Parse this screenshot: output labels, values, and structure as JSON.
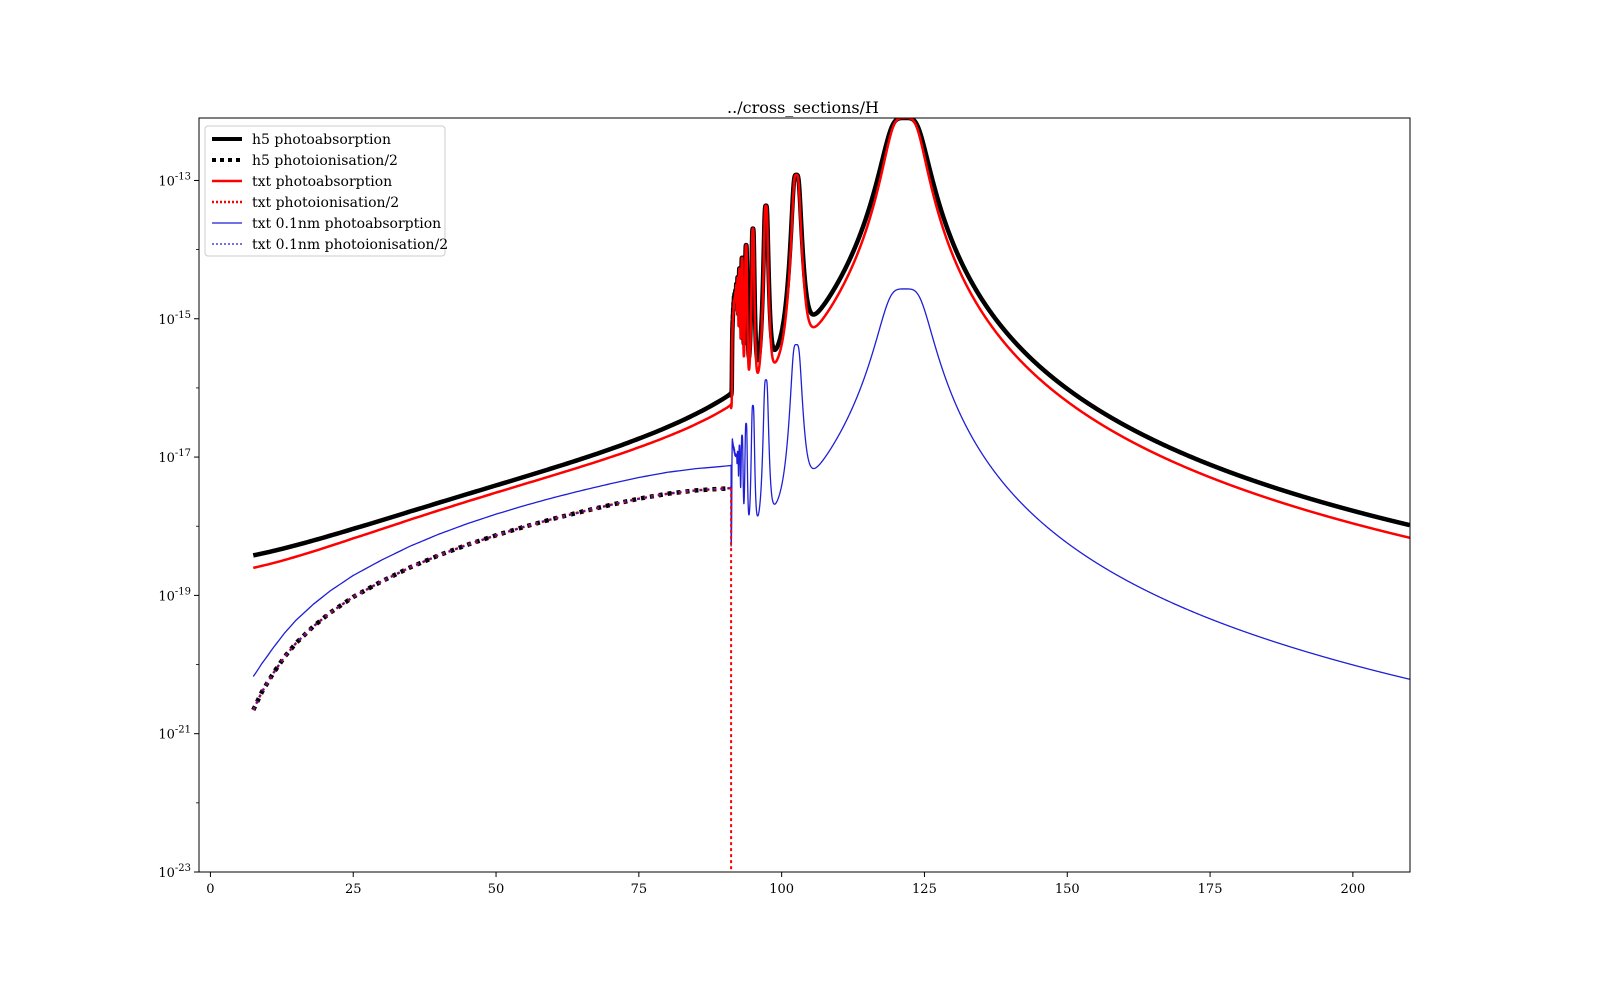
{
  "chart_data": {
    "type": "line",
    "title": "../cross_sections/H",
    "xlabel": "",
    "ylabel": "",
    "xlim": [
      -2,
      210
    ],
    "ylim": [
      1e-23,
      8e-13
    ],
    "yscale": "log",
    "xticks": [
      0,
      25,
      50,
      75,
      100,
      125,
      150,
      175,
      200
    ],
    "yticks": [
      {
        "value": 1e-23,
        "base": "10",
        "exp": "-23"
      },
      {
        "value": 1e-21,
        "base": "10",
        "exp": "-21"
      },
      {
        "value": 1e-19,
        "base": "10",
        "exp": "-19"
      },
      {
        "value": 1e-17,
        "base": "10",
        "exp": "-17"
      },
      {
        "value": 1e-15,
        "base": "10",
        "exp": "-15"
      },
      {
        "value": 1e-13,
        "base": "10",
        "exp": "-13"
      }
    ],
    "grid": false,
    "legend_position": "top-left",
    "continuum": {
      "x": [
        7.5,
        9,
        11,
        13,
        15,
        18,
        21,
        25,
        30,
        35,
        40,
        45,
        50,
        55,
        60,
        65,
        70,
        75,
        80,
        85,
        91.1
      ],
      "photoabsorption": [
        4.5e-21,
        8e-21,
        1.5e-20,
        2.6e-20,
        4.1e-20,
        7.1e-20,
        1.13e-19,
        1.9e-19,
        3.2e-19,
        5.1e-19,
        7.6e-19,
        1.08e-18,
        1.48e-18,
        1.97e-18,
        2.56e-18,
        3.25e-18,
        4.06e-18,
        4.99e-18,
        5.9e-18,
        6.6e-18,
        7.1e-18
      ],
      "photoionisation_half": [
        2.2e-21,
        4e-21,
        7.5e-21,
        1.3e-20,
        2.05e-20,
        3.55e-20,
        5.65e-20,
        9.5e-20,
        1.6e-19,
        2.55e-19,
        3.8e-19,
        5.4e-19,
        7.4e-19,
        9.85e-19,
        1.28e-18,
        1.62e-18,
        2.03e-18,
        2.5e-18,
        2.95e-18,
        3.3e-18,
        3.55e-18
      ]
    },
    "lines": [
      {
        "center": 121.57,
        "peak_h5": 8e-13,
        "peak_01nm": 2.7e-15,
        "halfwidth": 7.5
      },
      {
        "center": 102.57,
        "peak_h5": 1.2e-13,
        "peak_01nm": 4.2e-16,
        "halfwidth": 1.5
      },
      {
        "center": 97.25,
        "peak_h5": 4.3e-14,
        "peak_01nm": 1.3e-16,
        "halfwidth": 0.7
      },
      {
        "center": 94.97,
        "peak_h5": 2e-14,
        "peak_01nm": 5.5e-17,
        "halfwidth": 0.45
      },
      {
        "center": 93.78,
        "peak_h5": 1.15e-14,
        "peak_01nm": 3e-17,
        "halfwidth": 0.35
      },
      {
        "center": 93.07,
        "peak_h5": 7.5e-15,
        "peak_01nm": 2e-17,
        "halfwidth": 0.3
      },
      {
        "center": 92.62,
        "peak_h5": 5.2e-15,
        "peak_01nm": 1.4e-17,
        "halfwidth": 0.25
      },
      {
        "center": 92.31,
        "peak_h5": 3.8e-15,
        "peak_01nm": 1.1e-17,
        "halfwidth": 0.22
      },
      {
        "center": 92.09,
        "peak_h5": 2.9e-15,
        "peak_01nm": 9e-18,
        "halfwidth": 0.2
      },
      {
        "center": 91.93,
        "peak_h5": 2.2e-15,
        "peak_01nm": 8e-18,
        "halfwidth": 0.18
      },
      {
        "center": 91.8,
        "peak_h5": 1.7e-15,
        "peak_01nm": 7.5e-18,
        "halfwidth": 0.16
      },
      {
        "center": 91.7,
        "peak_h5": 1.3e-15,
        "peak_01nm": 7e-18,
        "halfwidth": 0.15
      },
      {
        "center": 91.62,
        "peak_h5": 1e-15,
        "peak_01nm": 6.8e-18,
        "halfwidth": 0.14
      },
      {
        "center": 91.55,
        "peak_h5": 7.5e-16,
        "peak_01nm": 6.6e-18,
        "halfwidth": 0.13
      },
      {
        "center": 91.49,
        "peak_h5": 5.5e-16,
        "peak_01nm": 6.5e-18,
        "halfwidth": 0.12
      },
      {
        "center": 91.44,
        "peak_h5": 4e-16,
        "peak_01nm": 6.4e-18,
        "halfwidth": 0.12
      },
      {
        "center": 91.4,
        "peak_h5": 2.8e-16,
        "peak_01nm": 6.3e-18,
        "halfwidth": 0.11
      },
      {
        "center": 91.36,
        "peak_h5": 1.9e-16,
        "peak_01nm": 6.2e-18,
        "halfwidth": 0.1
      },
      {
        "center": 91.33,
        "peak_h5": 1.2e-16,
        "peak_01nm": 6.1e-18,
        "halfwidth": 0.1
      }
    ],
    "series": [
      {
        "name": "h5 photoabsorption",
        "color": "#000000",
        "style": "solid",
        "width": 4.5
      },
      {
        "name": "h5 photoionisation/2",
        "color": "#000000",
        "style": "dotted",
        "width": 4.5
      },
      {
        "name": "txt photoabsorption",
        "color": "#ff0000",
        "style": "solid",
        "width": 2.5
      },
      {
        "name": "txt photoionisation/2",
        "color": "#ff0000",
        "style": "dotted",
        "width": 2.5
      },
      {
        "name": "txt 0.1nm photoabsorption",
        "color": "#1f1fd6",
        "style": "solid",
        "width": 1.3
      },
      {
        "name": "txt 0.1nm photoionisation/2",
        "color": "#1f1fd6",
        "style": "dotted",
        "width": 1.3
      }
    ]
  }
}
